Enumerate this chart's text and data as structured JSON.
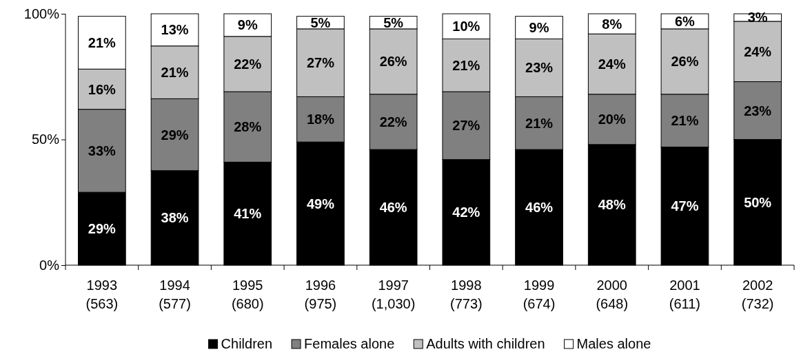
{
  "chart_data": {
    "type": "bar",
    "stacked": true,
    "categories": [
      "1993 (563)",
      "1994 (577)",
      "1995 (680)",
      "1996 (975)",
      "1997 (1,030)",
      "1998 (773)",
      "1999 (674)",
      "2000 (648)",
      "2001 (611)",
      "2002 (732)"
    ],
    "series": [
      {
        "name": "Children",
        "color": "#000000",
        "values": [
          29,
          37.6,
          41,
          49,
          46,
          42,
          46,
          48,
          47,
          50
        ],
        "value_labels": [
          "29%",
          "38%",
          "41%",
          "49%",
          "46%",
          "42%",
          "46%",
          "48%",
          "47%",
          "50%"
        ]
      },
      {
        "name": "Females alone",
        "color": "#808080",
        "values": [
          33,
          28.6,
          28,
          18,
          22,
          27,
          21,
          20,
          21,
          23
        ],
        "value_labels": [
          "33%",
          "29%",
          "28%",
          "18%",
          "22%",
          "27%",
          "21%",
          "20%",
          "21%",
          "23%"
        ]
      },
      {
        "name": "Adults with children",
        "color": "#c0c0c0",
        "values": [
          16,
          21,
          22,
          27,
          26,
          21,
          23,
          24,
          26,
          24
        ],
        "value_labels": [
          "16%",
          "21%",
          "22%",
          "27%",
          "26%",
          "21%",
          "23%",
          "24%",
          "26%",
          "24%"
        ]
      },
      {
        "name": "Males alone",
        "color": "#ffffff",
        "values": [
          21,
          12.8,
          9,
          5,
          5,
          10,
          9,
          8,
          6,
          3
        ],
        "value_labels": [
          "21%",
          "13%",
          "9%",
          "5%",
          "5%",
          "10%",
          "9%",
          "8%",
          "6%",
          "3%"
        ]
      }
    ],
    "ylim": [
      0,
      100
    ],
    "yticks": [
      {
        "value": 0,
        "label": "0%"
      },
      {
        "value": 50,
        "label": "50%"
      },
      {
        "value": 100,
        "label": "100%"
      }
    ],
    "legend": "bottom"
  }
}
